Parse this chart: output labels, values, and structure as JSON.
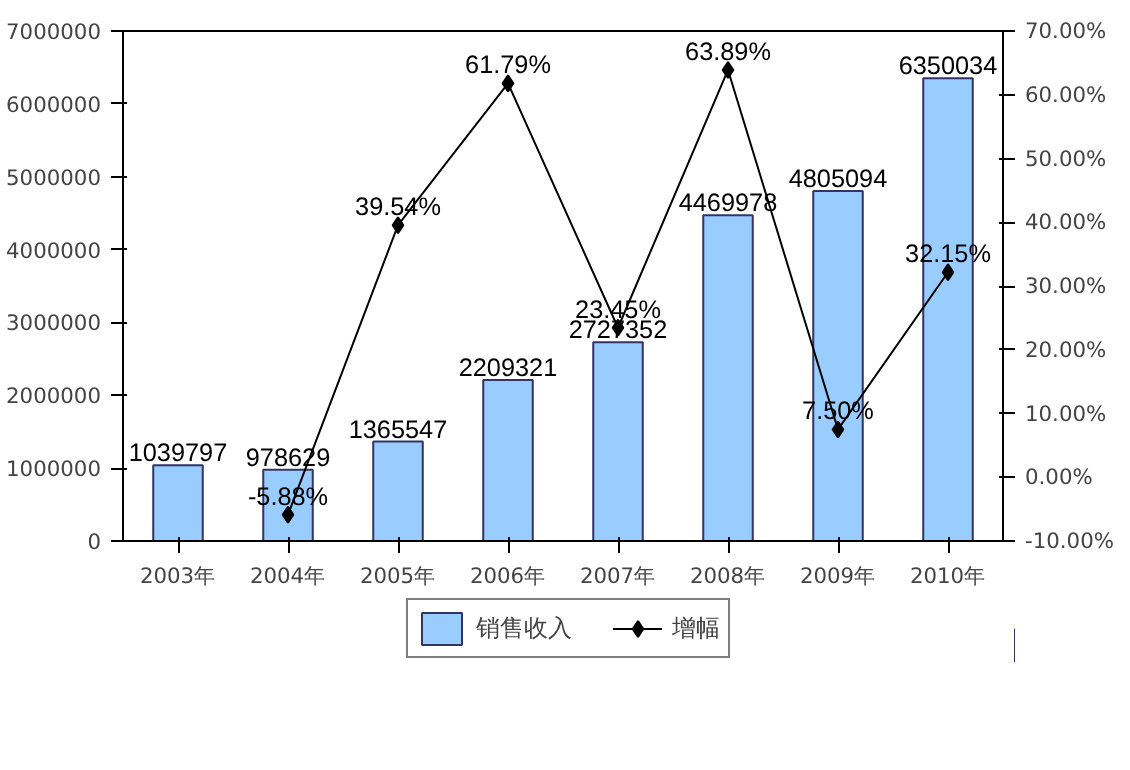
{
  "chart_data": {
    "type": "bar",
    "categories": [
      "2003年",
      "2004年",
      "2005年",
      "2006年",
      "2007年",
      "2008年",
      "2009年",
      "2010年"
    ],
    "series": [
      {
        "name": "销售收入",
        "color": "#99ccff",
        "values": [
          1039797,
          978629,
          1365547,
          2209321,
          2727352,
          4469978,
          4805094,
          6350034
        ],
        "value_labels": [
          "1039797",
          "978629",
          "1365547",
          "2209321",
          "2727352",
          "4469978",
          "4805094",
          "6350034"
        ]
      },
      {
        "name": "增幅",
        "type": "line",
        "axis": "y2",
        "color": "#000000",
        "values": [
          null,
          -5.88,
          39.54,
          61.79,
          23.45,
          63.89,
          7.5,
          32.15
        ],
        "value_labels": [
          null,
          "-5.88%",
          "39.54%",
          "61.79%",
          "23.45%",
          "63.89%",
          "7.50%",
          "32.15%"
        ]
      }
    ],
    "ylim": [
      0,
      7000000
    ],
    "yticks": [
      0,
      1000000,
      2000000,
      3000000,
      4000000,
      5000000,
      6000000,
      7000000
    ],
    "y2lim": [
      -10,
      70
    ],
    "y2ticks": [
      {
        "value": -10,
        "label": "-10.00%"
      },
      {
        "value": 0,
        "label": "0.00%"
      },
      {
        "value": 10,
        "label": "10.00%"
      },
      {
        "value": 20,
        "label": "20.00%"
      },
      {
        "value": 30,
        "label": "30.00%"
      },
      {
        "value": 40,
        "label": "40.00%"
      },
      {
        "value": 50,
        "label": "50.00%"
      },
      {
        "value": 60,
        "label": "60.00%"
      },
      {
        "value": 70,
        "label": "70.00%"
      }
    ],
    "marker": "diamond",
    "legend": "bottom"
  }
}
